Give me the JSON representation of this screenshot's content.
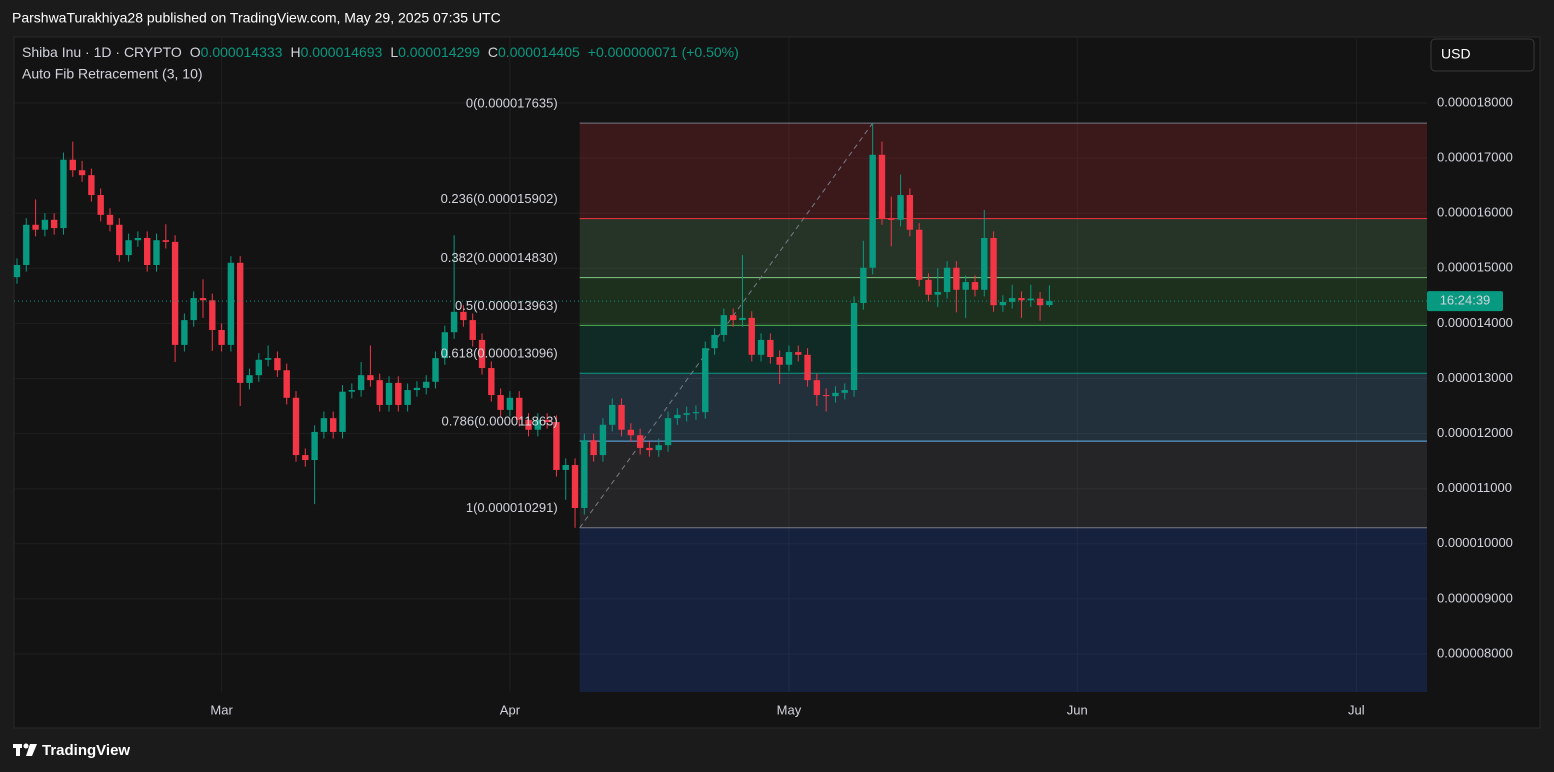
{
  "header": {
    "publisher": "ParshwaTurakhiya28 published on TradingView.com, May 29, 2025 07:35 UTC"
  },
  "footer": {
    "brand": "TradingView"
  },
  "chart_data": {
    "type": "candlestick",
    "symbol": "Shiba Inu · 1D · CRYPTO",
    "legend_ohlc": [
      {
        "label": "O",
        "value": "0.000014333"
      },
      {
        "label": "H",
        "value": "0.000014693"
      },
      {
        "label": "L",
        "value": "0.000014299"
      },
      {
        "label": "C",
        "value": "0.000014405"
      }
    ],
    "change": "+0.000000071 (+0.50%)",
    "indicator": "Auto Fib Retracement (3, 10)",
    "currency": "USD",
    "countdown": "16:24:39",
    "up_color": "#089981",
    "down_color": "#f23645",
    "ohlc": [
      [
        1.484e-05,
        1.518e-05,
        1.472e-05,
        1.506e-05
      ],
      [
        1.506e-05,
        1.591e-05,
        1.494e-05,
        1.579e-05
      ],
      [
        1.579e-05,
        1.625e-05,
        1.558e-05,
        1.57e-05
      ],
      [
        1.57e-05,
        1.6e-05,
        1.558e-05,
        1.588e-05
      ],
      [
        1.588e-05,
        1.6e-05,
        1.561e-05,
        1.573e-05
      ],
      [
        1.573e-05,
        1.71e-05,
        1.561e-05,
        1.697e-05
      ],
      [
        1.697e-05,
        1.73e-05,
        1.666e-05,
        1.678e-05
      ],
      [
        1.678e-05,
        1.695e-05,
        1.657e-05,
        1.669e-05
      ],
      [
        1.669e-05,
        1.681e-05,
        1.621e-05,
        1.633e-05
      ],
      [
        1.633e-05,
        1.645e-05,
        1.585e-05,
        1.597e-05
      ],
      [
        1.597e-05,
        1.609e-05,
        1.567e-05,
        1.579e-05
      ],
      [
        1.579e-05,
        1.591e-05,
        1.512e-05,
        1.524e-05
      ],
      [
        1.524e-05,
        1.563e-05,
        1.512e-05,
        1.551e-05
      ],
      [
        1.551e-05,
        1.567e-05,
        1.539e-05,
        1.555e-05
      ],
      [
        1.555e-05,
        1.567e-05,
        1.494e-05,
        1.506e-05
      ],
      [
        1.506e-05,
        1.563e-05,
        1.494e-05,
        1.551e-05
      ],
      [
        1.551e-05,
        1.58e-05,
        1.536e-05,
        1.548e-05
      ],
      [
        1.548e-05,
        1.56e-05,
        1.33e-05,
        1.361e-05
      ],
      [
        1.361e-05,
        1.418e-05,
        1.349e-05,
        1.406e-05
      ],
      [
        1.406e-05,
        1.458e-05,
        1.394e-05,
        1.446e-05
      ],
      [
        1.446e-05,
        1.48e-05,
        1.41e-05,
        1.442e-05
      ],
      [
        1.442e-05,
        1.454e-05,
        1.35e-05,
        1.388e-05
      ],
      [
        1.388e-05,
        1.4e-05,
        1.349e-05,
        1.361e-05
      ],
      [
        1.361e-05,
        1.522e-05,
        1.349e-05,
        1.51e-05
      ],
      [
        1.51e-05,
        1.522e-05,
        1.25e-05,
        1.292e-05
      ],
      [
        1.292e-05,
        1.318e-05,
        1.28e-05,
        1.306e-05
      ],
      [
        1.306e-05,
        1.346e-05,
        1.294e-05,
        1.334e-05
      ],
      [
        1.334e-05,
        1.36e-05,
        1.322e-05,
        1.337e-05
      ],
      [
        1.337e-05,
        1.349e-05,
        1.303e-05,
        1.315e-05
      ],
      [
        1.315e-05,
        1.327e-05,
        1.253e-05,
        1.265e-05
      ],
      [
        1.265e-05,
        1.277e-05,
        1.149e-05,
        1.161e-05
      ],
      [
        1.161e-05,
        1.173e-05,
        1.14e-05,
        1.152e-05
      ],
      [
        1.152e-05,
        1.215e-05,
        1.072e-05,
        1.203e-05
      ],
      [
        1.203e-05,
        1.24e-05,
        1.191e-05,
        1.228e-05
      ],
      [
        1.228e-05,
        1.24e-05,
        1.191e-05,
        1.203e-05
      ],
      [
        1.203e-05,
        1.288e-05,
        1.191e-05,
        1.276e-05
      ],
      [
        1.276e-05,
        1.291e-05,
        1.264e-05,
        1.279e-05
      ],
      [
        1.279e-05,
        1.33e-05,
        1.267e-05,
        1.306e-05
      ],
      [
        1.306e-05,
        1.36e-05,
        1.285e-05,
        1.297e-05
      ],
      [
        1.297e-05,
        1.309e-05,
        1.24e-05,
        1.252e-05
      ],
      [
        1.252e-05,
        1.304e-05,
        1.24e-05,
        1.292e-05
      ],
      [
        1.292e-05,
        1.304e-05,
        1.24e-05,
        1.252e-05
      ],
      [
        1.252e-05,
        1.291e-05,
        1.24e-05,
        1.279e-05
      ],
      [
        1.279e-05,
        1.295e-05,
        1.267e-05,
        1.283e-05
      ],
      [
        1.283e-05,
        1.306e-05,
        1.271e-05,
        1.294e-05
      ],
      [
        1.294e-05,
        1.349e-05,
        1.282e-05,
        1.337e-05
      ],
      [
        1.337e-05,
        1.396e-05,
        1.325e-05,
        1.384e-05
      ],
      [
        1.384e-05,
        1.56e-05,
        1.372e-05,
        1.421e-05
      ],
      [
        1.421e-05,
        1.433e-05,
        1.394e-05,
        1.406e-05
      ],
      [
        1.406e-05,
        1.418e-05,
        1.358e-05,
        1.37e-05
      ],
      [
        1.37e-05,
        1.382e-05,
        1.307e-05,
        1.319e-05
      ],
      [
        1.319e-05,
        1.331e-05,
        1.258e-05,
        1.27e-05
      ],
      [
        1.27e-05,
        1.282e-05,
        1.231e-05,
        1.243e-05
      ],
      [
        1.243e-05,
        1.277e-05,
        1.231e-05,
        1.265e-05
      ],
      [
        1.265e-05,
        1.277e-05,
        1.213e-05,
        1.225e-05
      ],
      [
        1.225e-05,
        1.237e-05,
        1.195e-05,
        1.207e-05
      ],
      [
        1.207e-05,
        1.237e-05,
        1.195e-05,
        1.225e-05
      ],
      [
        1.225e-05,
        1.237e-05,
        1.209e-05,
        1.221e-05
      ],
      [
        1.221e-05,
        1.233e-05,
        1.122e-05,
        1.134e-05
      ],
      [
        1.134e-05,
        1.155e-05,
        1.08e-05,
        1.143e-05
      ],
      [
        1.143e-05,
        1.155e-05,
        1.029e-05,
        1.065e-05
      ],
      [
        1.065e-05,
        1.2e-05,
        1.053e-05,
        1.188e-05
      ],
      [
        1.188e-05,
        1.2e-05,
        1.149e-05,
        1.161e-05
      ],
      [
        1.161e-05,
        1.228e-05,
        1.149e-05,
        1.216e-05
      ],
      [
        1.216e-05,
        1.264e-05,
        1.204e-05,
        1.252e-05
      ],
      [
        1.252e-05,
        1.264e-05,
        1.195e-05,
        1.207e-05
      ],
      [
        1.207e-05,
        1.219e-05,
        1.185e-05,
        1.197e-05
      ],
      [
        1.197e-05,
        1.209e-05,
        1.162e-05,
        1.174e-05
      ],
      [
        1.174e-05,
        1.186e-05,
        1.158e-05,
        1.17e-05
      ],
      [
        1.17e-05,
        1.191e-05,
        1.158e-05,
        1.179e-05
      ],
      [
        1.179e-05,
        1.24e-05,
        1.167e-05,
        1.228e-05
      ],
      [
        1.228e-05,
        1.246e-05,
        1.216e-05,
        1.234e-05
      ],
      [
        1.234e-05,
        1.249e-05,
        1.222e-05,
        1.237e-05
      ],
      [
        1.237e-05,
        1.251e-05,
        1.225e-05,
        1.239e-05
      ],
      [
        1.239e-05,
        1.367e-05,
        1.227e-05,
        1.355e-05
      ],
      [
        1.355e-05,
        1.391e-05,
        1.343e-05,
        1.379e-05
      ],
      [
        1.379e-05,
        1.427e-05,
        1.367e-05,
        1.415e-05
      ],
      [
        1.415e-05,
        1.427e-05,
        1.394e-05,
        1.406e-05
      ],
      [
        1.406e-05,
        1.524e-05,
        1.394e-05,
        1.41e-05
      ],
      [
        1.41e-05,
        1.422e-05,
        1.331e-05,
        1.343e-05
      ],
      [
        1.343e-05,
        1.382e-05,
        1.331e-05,
        1.37e-05
      ],
      [
        1.37e-05,
        1.382e-05,
        1.327e-05,
        1.339e-05
      ],
      [
        1.339e-05,
        1.351e-05,
        1.29e-05,
        1.325e-05
      ],
      [
        1.325e-05,
        1.36e-05,
        1.313e-05,
        1.348e-05
      ],
      [
        1.348e-05,
        1.36e-05,
        1.331e-05,
        1.343e-05
      ],
      [
        1.343e-05,
        1.355e-05,
        1.285e-05,
        1.297e-05
      ],
      [
        1.297e-05,
        1.309e-05,
        1.25e-05,
        1.27e-05
      ],
      [
        1.27e-05,
        1.282e-05,
        1.24e-05,
        1.268e-05
      ],
      [
        1.268e-05,
        1.286e-05,
        1.256e-05,
        1.274e-05
      ],
      [
        1.274e-05,
        1.291e-05,
        1.262e-05,
        1.279e-05
      ],
      [
        1.279e-05,
        1.449e-05,
        1.267e-05,
        1.437e-05
      ],
      [
        1.437e-05,
        1.55e-05,
        1.425e-05,
        1.501e-05
      ],
      [
        1.501e-05,
        1.7635e-05,
        1.489e-05,
        1.706e-05
      ],
      [
        1.706e-05,
        1.73e-05,
        1.579e-05,
        1.591e-05
      ],
      [
        1.591e-05,
        1.63e-05,
        1.54e-05,
        1.588e-05
      ],
      [
        1.588e-05,
        1.67e-05,
        1.576e-05,
        1.633e-05
      ],
      [
        1.633e-05,
        1.645e-05,
        1.558e-05,
        1.57e-05
      ],
      [
        1.57e-05,
        1.582e-05,
        1.467e-05,
        1.479e-05
      ],
      [
        1.479e-05,
        1.491e-05,
        1.44e-05,
        1.452e-05
      ],
      [
        1.452e-05,
        1.5e-05,
        1.43e-05,
        1.457e-05
      ],
      [
        1.457e-05,
        1.513e-05,
        1.445e-05,
        1.501e-05
      ],
      [
        1.501e-05,
        1.513e-05,
        1.42e-05,
        1.461e-05
      ],
      [
        1.461e-05,
        1.487e-05,
        1.41e-05,
        1.475e-05
      ],
      [
        1.475e-05,
        1.487e-05,
        1.449e-05,
        1.461e-05
      ],
      [
        1.461e-05,
        1.606e-05,
        1.449e-05,
        1.555e-05
      ],
      [
        1.555e-05,
        1.567e-05,
        1.421e-05,
        1.433e-05
      ],
      [
        1.433e-05,
        1.451e-05,
        1.421e-05,
        1.439e-05
      ],
      [
        1.439e-05,
        1.47e-05,
        1.427e-05,
        1.446e-05
      ],
      [
        1.446e-05,
        1.458e-05,
        1.41e-05,
        1.442e-05
      ],
      [
        1.442e-05,
        1.47e-05,
        1.43e-05,
        1.445e-05
      ],
      [
        1.445e-05,
        1.457e-05,
        1.405e-05,
        1.433e-05
      ],
      [
        1.4333e-05,
        1.4693e-05,
        1.4299e-05,
        1.4405e-05
      ]
    ],
    "xlim": [
      -0.32,
      151.6
    ],
    "xticks": [
      {
        "value": 22,
        "label": "Mar"
      },
      {
        "value": 53,
        "label": "Apr"
      },
      {
        "value": 83,
        "label": "May"
      },
      {
        "value": 114,
        "label": "Jun"
      },
      {
        "value": 144,
        "label": "Jul"
      }
    ],
    "ylim": [
      7.31e-06,
      1.9198e-05
    ],
    "yticks": [
      {
        "value": 8e-06,
        "label": "0.000008000"
      },
      {
        "value": 9e-06,
        "label": "0.000009000"
      },
      {
        "value": 1e-05,
        "label": "0.000010000"
      },
      {
        "value": 1.1e-05,
        "label": "0.000011000"
      },
      {
        "value": 1.2e-05,
        "label": "0.000012000"
      },
      {
        "value": 1.3e-05,
        "label": "0.000013000"
      },
      {
        "value": 1.4e-05,
        "label": "0.000014000"
      },
      {
        "value": 1.5e-05,
        "label": "0.000015000"
      },
      {
        "value": 1.6e-05,
        "label": "0.000016000"
      },
      {
        "value": 1.7e-05,
        "label": "0.000017000"
      },
      {
        "value": 1.8e-05,
        "label": "0.000018000"
      }
    ],
    "grid": true,
    "fib_levels": [
      {
        "label": "0(0.000017635)",
        "value": 1.7635e-05,
        "color": "#787b86"
      },
      {
        "label": "0.236(0.000015902)",
        "value": 1.5902e-05,
        "color": "#f23645"
      },
      {
        "label": "0.382(0.000014830)",
        "value": 1.483e-05,
        "color": "#81c784"
      },
      {
        "label": "0.5(0.000013963)",
        "value": 1.3963e-05,
        "color": "#4caf50"
      },
      {
        "label": "0.618(0.000013096)",
        "value": 1.3096e-05,
        "color": "#089981"
      },
      {
        "label": "0.786(0.000011863)",
        "value": 1.1863e-05,
        "color": "#64b5f6"
      },
      {
        "label": "1(0.000010291)",
        "value": 1.0291e-05,
        "color": "#787b86"
      }
    ],
    "fib_extension_color": "#2962ff"
  }
}
